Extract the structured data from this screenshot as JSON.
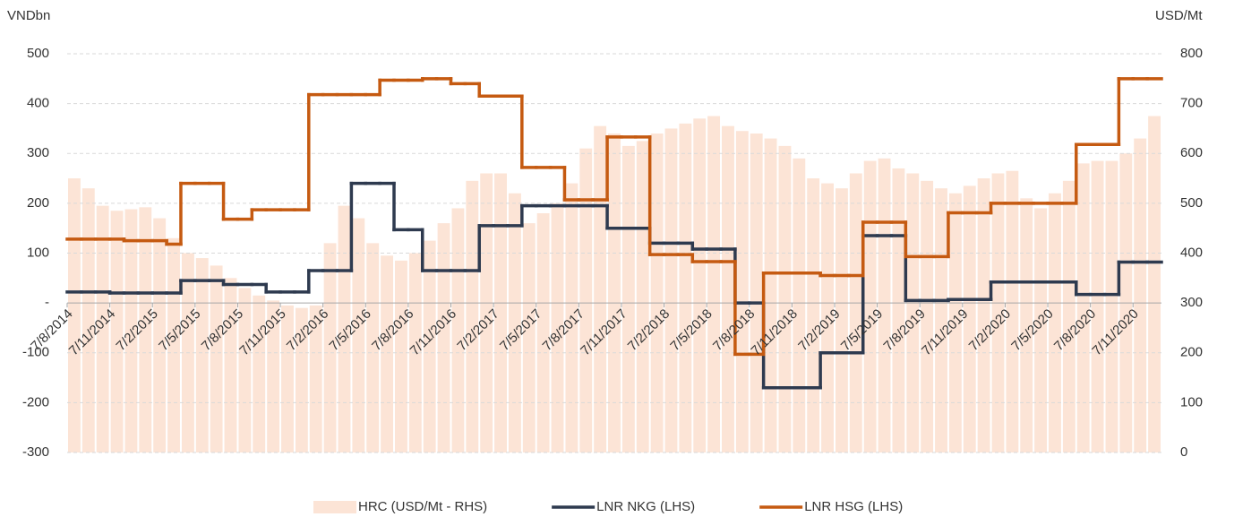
{
  "chart_data": {
    "type": "bar-line-combo",
    "y_label": "VNDbn",
    "y2_label": "USD/Mt",
    "categories": [
      "7/8/2014",
      null,
      null,
      "7/11/2014",
      null,
      null,
      "7/2/2015",
      null,
      null,
      "7/5/2015",
      null,
      null,
      "7/8/2015",
      null,
      null,
      "7/11/2015",
      null,
      null,
      "7/2/2016",
      null,
      null,
      "7/5/2016",
      null,
      null,
      "7/8/2016",
      null,
      null,
      "7/11/2016",
      null,
      null,
      "7/2/2017",
      null,
      null,
      "7/5/2017",
      null,
      null,
      "7/8/2017",
      null,
      null,
      "7/11/2017",
      null,
      null,
      "7/2/2018",
      null,
      null,
      "7/5/2018",
      null,
      null,
      "7/8/2018",
      null,
      null,
      "7/11/2018",
      null,
      null,
      "7/2/2019",
      null,
      null,
      "7/5/2019",
      null,
      null,
      "7/8/2019",
      null,
      null,
      "7/11/2019",
      null,
      null,
      "7/2/2020",
      null,
      null,
      "7/5/2020",
      null,
      null,
      "7/8/2020",
      null,
      null,
      "7/11/2020",
      null
    ],
    "series": [
      {
        "name": "HRC (USD/Mt - RHS)",
        "kind": "bar",
        "axis": "y2",
        "color": "#fce4d6",
        "values": [
          550,
          530,
          495,
          485,
          488,
          492,
          470,
          430,
          400,
          390,
          375,
          350,
          330,
          315,
          305,
          295,
          290,
          295,
          420,
          495,
          470,
          420,
          395,
          385,
          400,
          425,
          460,
          490,
          545,
          560,
          560,
          520,
          460,
          480,
          500,
          540,
          610,
          655,
          640,
          615,
          625,
          640,
          650,
          660,
          670,
          675,
          655,
          645,
          640,
          630,
          615,
          590,
          550,
          540,
          530,
          560,
          585,
          590,
          570,
          560,
          545,
          530,
          520,
          535,
          550,
          560,
          565,
          510,
          490,
          520,
          545,
          580,
          585,
          585,
          600,
          630,
          675
        ]
      },
      {
        "name": "LNR NKG (LHS)",
        "kind": "step",
        "axis": "y",
        "color": "#2e3a4f",
        "values": [
          22,
          22,
          22,
          20,
          20,
          20,
          20,
          20,
          45,
          45,
          45,
          37,
          37,
          37,
          22,
          22,
          22,
          65,
          65,
          65,
          240,
          240,
          240,
          147,
          147,
          65,
          65,
          65,
          65,
          155,
          155,
          155,
          195,
          195,
          195,
          195,
          195,
          195,
          150,
          150,
          150,
          120,
          120,
          120,
          108,
          108,
          108,
          0,
          0,
          -170,
          -170,
          -170,
          -170,
          -100,
          -100,
          -100,
          135,
          135,
          135,
          5,
          5,
          5,
          7,
          7,
          7,
          42,
          42,
          42,
          42,
          42,
          42,
          17,
          17,
          17,
          82,
          82,
          82
        ]
      },
      {
        "name": "LNR HSG (LHS)",
        "kind": "step",
        "axis": "y",
        "color": "#c55a11",
        "values": [
          128,
          128,
          128,
          128,
          125,
          125,
          125,
          118,
          240,
          240,
          240,
          168,
          168,
          187,
          187,
          187,
          187,
          418,
          418,
          418,
          418,
          418,
          447,
          447,
          447,
          450,
          450,
          440,
          440,
          415,
          415,
          415,
          272,
          272,
          272,
          207,
          207,
          207,
          333,
          333,
          333,
          97,
          97,
          97,
          83,
          83,
          83,
          -103,
          -103,
          60,
          60,
          60,
          60,
          55,
          55,
          55,
          162,
          162,
          162,
          93,
          93,
          93,
          181,
          181,
          181,
          200,
          200,
          200,
          200,
          200,
          200,
          318,
          318,
          318,
          450,
          450,
          450
        ]
      }
    ],
    "ylim": [
      -300,
      500
    ],
    "yticks": [
      -300,
      -200,
      -100,
      {
        "value": 0,
        "label": "-"
      },
      100,
      200,
      300,
      400,
      500
    ],
    "y2lim": [
      0,
      800
    ],
    "y2ticks": [
      0,
      100,
      200,
      300,
      400,
      500,
      600,
      700,
      800
    ],
    "grid": true,
    "legend": "bottom"
  }
}
